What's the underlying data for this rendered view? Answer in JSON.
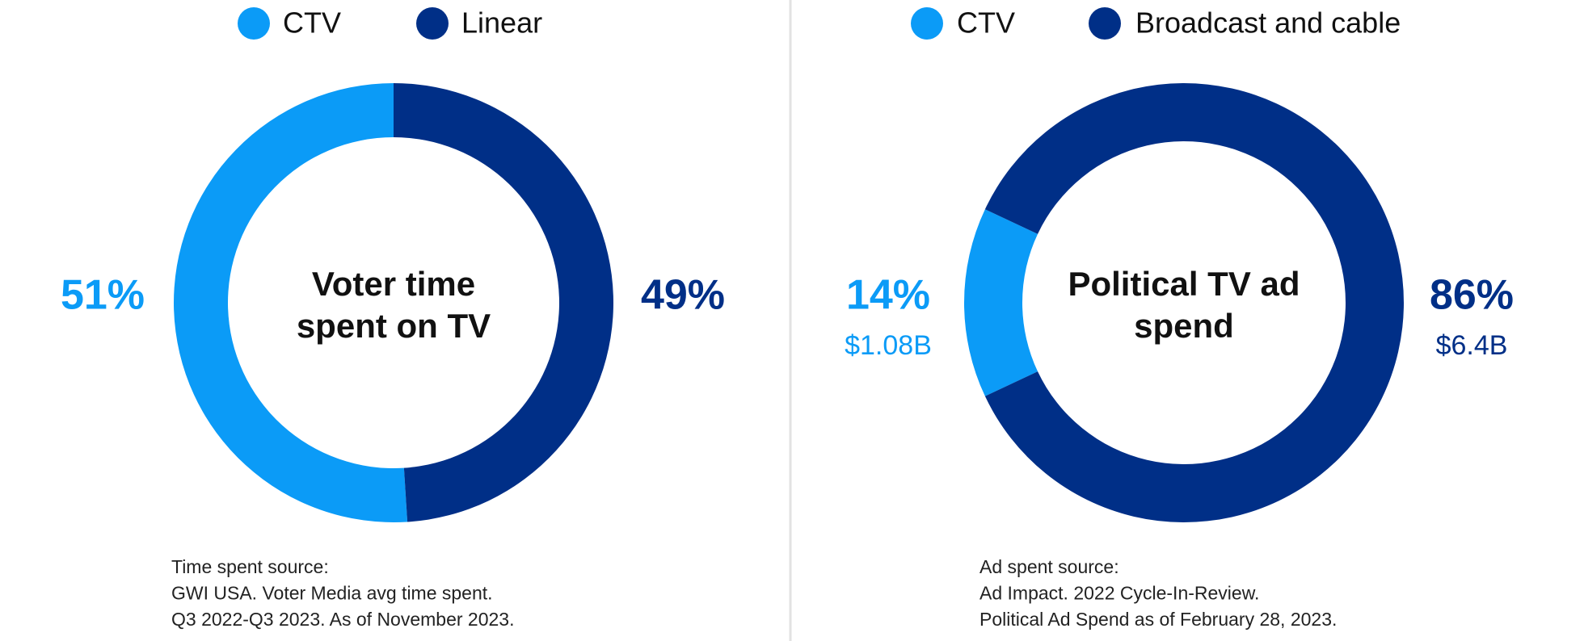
{
  "chart_data": [
    {
      "type": "pie",
      "title": "Voter time spent on TV",
      "categories": [
        "CTV",
        "Linear"
      ],
      "values": [
        51,
        49
      ],
      "value_labels": [
        "51%",
        "49%"
      ],
      "colors": [
        "#0b9bf7",
        "#002f87"
      ],
      "source": [
        "Time spent source:",
        "GWI USA. Voter Media avg time spent.",
        "Q3 2022-Q3 2023. As of November 2023."
      ]
    },
    {
      "type": "pie",
      "title": "Political TV ad spend",
      "categories": [
        "CTV",
        "Broadcast and cable"
      ],
      "values": [
        14,
        86
      ],
      "value_labels": [
        "14%",
        "86%"
      ],
      "amount_labels": [
        "$1.08B",
        "$6.4B"
      ],
      "colors": [
        "#0b9bf7",
        "#002f87"
      ],
      "source": [
        "Ad spent source:",
        "Ad Impact. 2022 Cycle-In-Review.",
        "Political Ad Spend as of February 28, 2023."
      ]
    }
  ]
}
